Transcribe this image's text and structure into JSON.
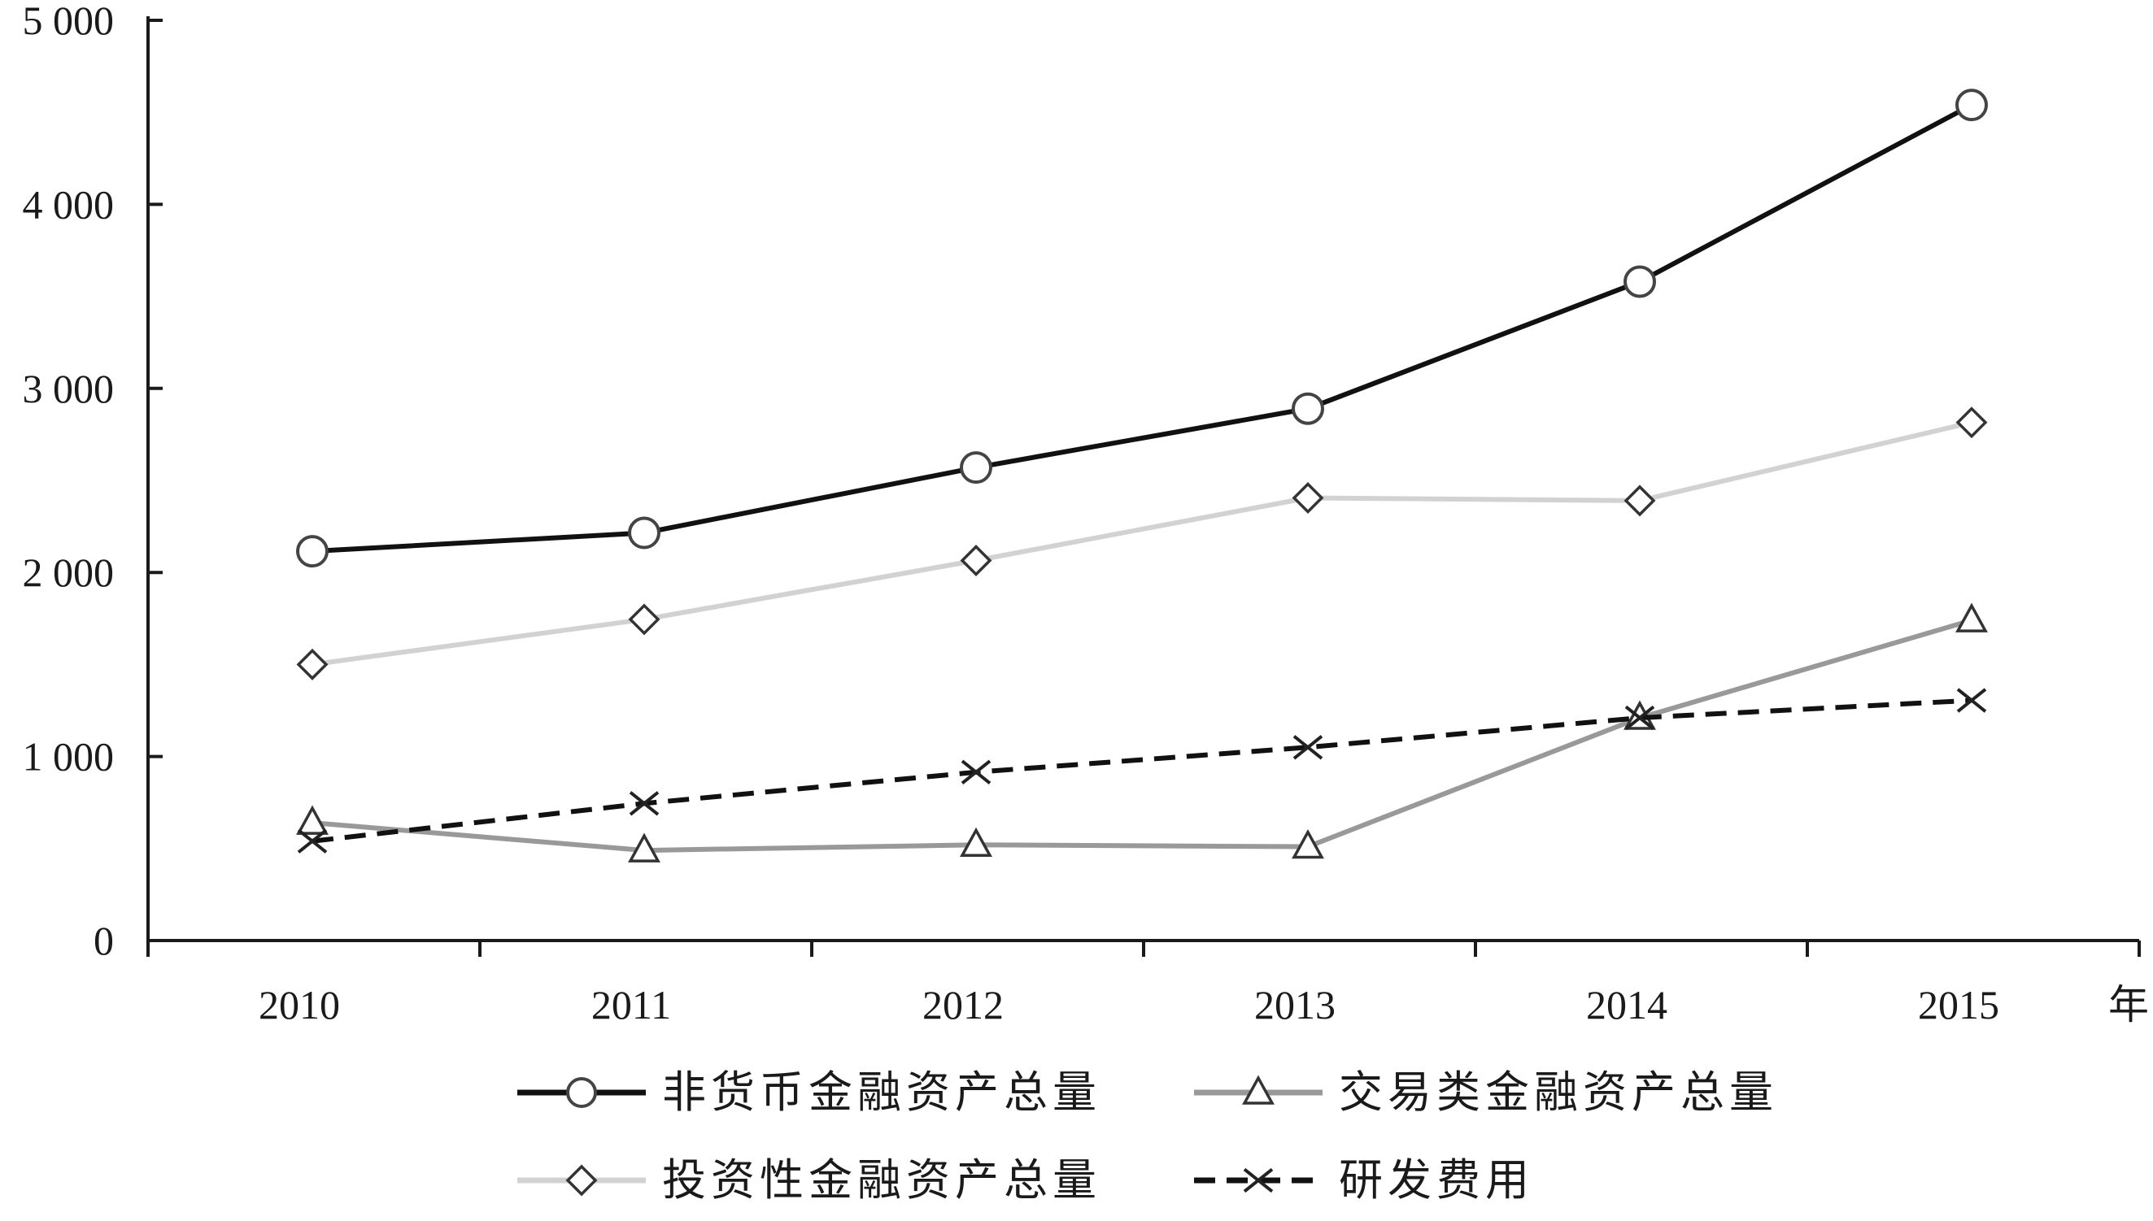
{
  "chart_data": {
    "type": "line",
    "title": "",
    "xlabel": "年",
    "ylabel": "",
    "categories": [
      "2010",
      "2011",
      "2012",
      "2013",
      "2014",
      "2015"
    ],
    "ylim": [
      0,
      5000
    ],
    "yticks": [
      0,
      1000,
      2000,
      3000,
      4000,
      5000
    ],
    "ytick_labels": [
      "0",
      "1 000",
      "2 000",
      "3 000",
      "4 000",
      "5 000"
    ],
    "grid": false,
    "legend_position": "bottom",
    "series": [
      {
        "name": "非货币金融资产总量",
        "marker": "circle",
        "color": "#111111",
        "dash": "solid",
        "values": [
          2115,
          2215,
          2570,
          2890,
          3580,
          4540
        ]
      },
      {
        "name": "交易类金融资产总量",
        "marker": "triangle",
        "color": "#999999",
        "dash": "solid",
        "values": [
          640,
          490,
          520,
          510,
          1210,
          1740
        ]
      },
      {
        "name": "投资性金融资产总量",
        "marker": "diamond",
        "color": "#d2d2d2",
        "dash": "solid",
        "values": [
          1500,
          1745,
          2065,
          2405,
          2390,
          2815
        ]
      },
      {
        "name": "研发费用",
        "marker": "x",
        "color": "#111111",
        "dash": "dashed",
        "values": [
          540,
          745,
          915,
          1050,
          1210,
          1305
        ]
      }
    ]
  }
}
